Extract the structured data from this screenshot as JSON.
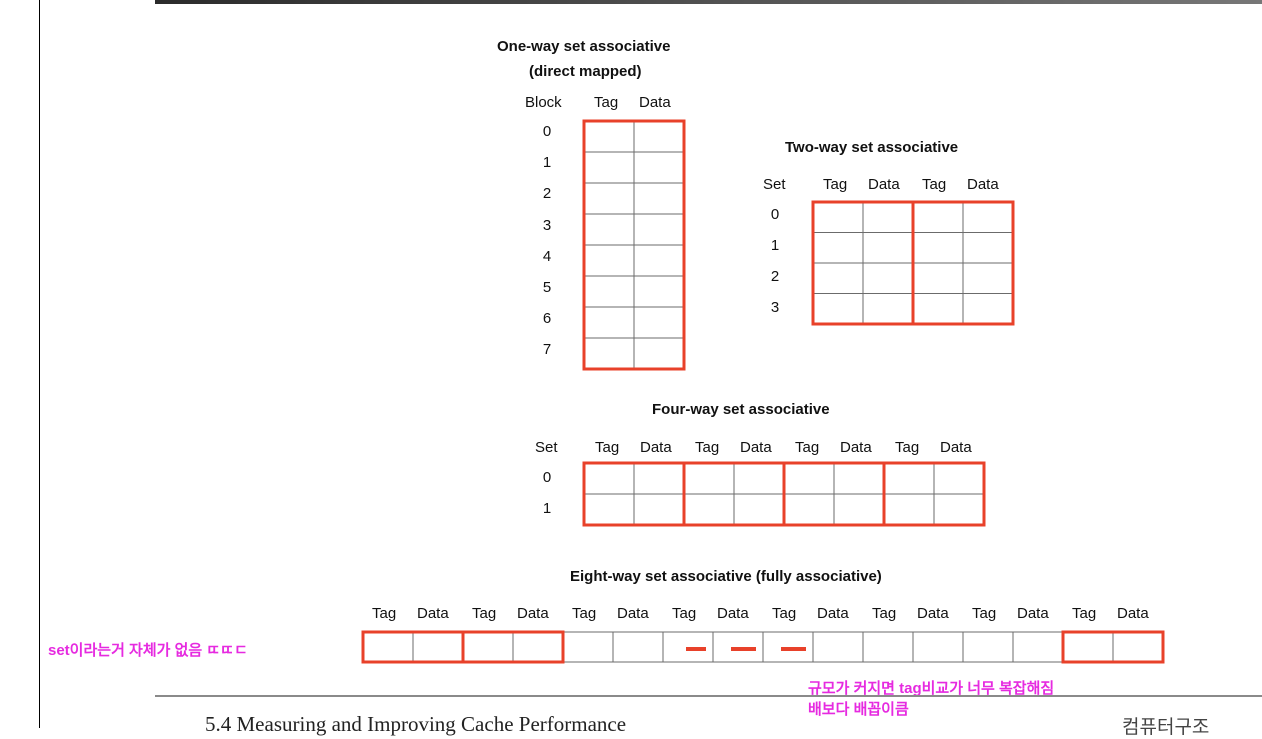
{
  "one_way": {
    "title": "One-way set associative",
    "subtitle": "(direct mapped)",
    "col_block": "Block",
    "col_tag": "Tag",
    "col_data": "Data",
    "rows": [
      "0",
      "1",
      "2",
      "3",
      "4",
      "5",
      "6",
      "7"
    ]
  },
  "two_way": {
    "title": "Two-way set associative",
    "col_set": "Set",
    "col_tag": "Tag",
    "col_data": "Data",
    "rows": [
      "0",
      "1",
      "2",
      "3"
    ]
  },
  "four_way": {
    "title": "Four-way set associative",
    "col_set": "Set",
    "col_tag": "Tag",
    "col_data": "Data",
    "rows": [
      "0",
      "1"
    ]
  },
  "eight_way": {
    "title": "Eight-way set associative (fully associative)",
    "col_tag": "Tag",
    "col_data": "Data"
  },
  "annotations": {
    "left_note": "set이라는거 자체가 없음 ㄸㄸㄷ",
    "bottom_note_line1": "규모가 커지면 tag비교가 너무 복잡해짐",
    "bottom_note_line2": "배보다 배꼽이큼"
  },
  "footer": {
    "left": "5.4 Measuring and Improving Cache Performance",
    "right": "컴퓨터구조"
  },
  "colors": {
    "highlight": "#e8412a",
    "grid": "#6b6b6b",
    "annotation": "#e62ae0"
  }
}
